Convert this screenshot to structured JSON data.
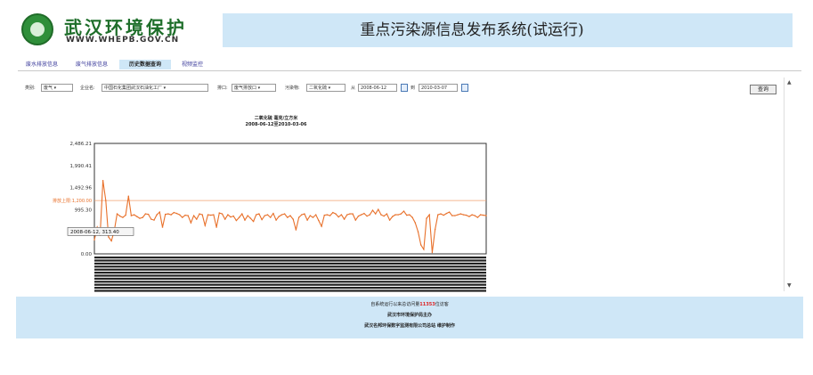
{
  "header": {
    "logo_cn": "武汉环境保护",
    "logo_en": "WWW.WHEPB.GOV.CN",
    "system_title": "重点污染源信息发布系统(试运行)"
  },
  "nav": {
    "tabs": [
      {
        "label": "废水排放信息"
      },
      {
        "label": "废气排放信息"
      },
      {
        "label": "历史数据查询",
        "active": true
      },
      {
        "label": "视频监控"
      }
    ]
  },
  "query": {
    "type_label": "类别:",
    "type_value": "废气",
    "company_label": "企业名:",
    "company_value": "中国石化集团武汉石油化工厂",
    "outlet_label": "排口:",
    "outlet_value": "废气排放口",
    "pollutant_label": "污染物:",
    "pollutant_value": "二氧化硫",
    "from_label": "从",
    "from_value": "2008-06-12",
    "to_label": "到",
    "to_value": "2010-03-07",
    "button_label": "查询"
  },
  "chart_data": {
    "type": "line",
    "title": "二氧化硫 毫克/立方米",
    "subtitle": "2008-06-12至2010-03-06",
    "y_ticks": [
      "2,486.21",
      "1,990.41",
      "1,492.96",
      "995.30",
      "497.65",
      "0.00"
    ],
    "ylim": [
      0,
      2486.21
    ],
    "limit_label": "排放上限:1,200.00",
    "limit_value": 1200,
    "tooltip": "2008-06-12, 313.40",
    "series_color": "#e8702a",
    "limit_color": "#f0a070",
    "values": [
      313.4,
      600,
      420,
      1650,
      1200,
      380,
      290,
      520,
      900,
      850,
      820,
      870,
      1300,
      860,
      880,
      840,
      800,
      820,
      900,
      890,
      780,
      760,
      880,
      940,
      600,
      890,
      900,
      880,
      930,
      910,
      880,
      820,
      870,
      860,
      700,
      860,
      780,
      900,
      880,
      640,
      880,
      870,
      880,
      600,
      920,
      900,
      780,
      880,
      830,
      850,
      750,
      820,
      900,
      760,
      860,
      800,
      730,
      880,
      900,
      770,
      860,
      880,
      820,
      910,
      760,
      840,
      880,
      900,
      820,
      860,
      780,
      540,
      820,
      880,
      900,
      760,
      860,
      820,
      880,
      750,
      620,
      870,
      880,
      860,
      930,
      900,
      830,
      880,
      780,
      880,
      900,
      900,
      760,
      850,
      880,
      910,
      850,
      880,
      980,
      900,
      1000,
      880,
      850,
      900,
      760,
      840,
      880,
      880,
      900,
      960,
      870,
      880,
      820,
      700,
      500,
      200,
      100,
      800,
      880,
      30,
      550,
      880,
      900,
      870,
      910,
      940,
      860,
      860,
      880,
      900,
      880,
      870,
      840,
      880,
      860,
      820,
      880,
      870,
      860
    ]
  },
  "footer": {
    "visit_prefix": "自系统运行以来总访问量",
    "visit_count": "11353",
    "visit_suffix": "位访客",
    "sponsor": "武汉市环境保护局主办",
    "maintainer": "武汉名邦环保数字监测有限公司总站  维护制作"
  },
  "colors": {
    "title_bar": "#cfe7f7",
    "logo_green": "#1e6e2a",
    "nav_active": "#cfe7f7"
  }
}
